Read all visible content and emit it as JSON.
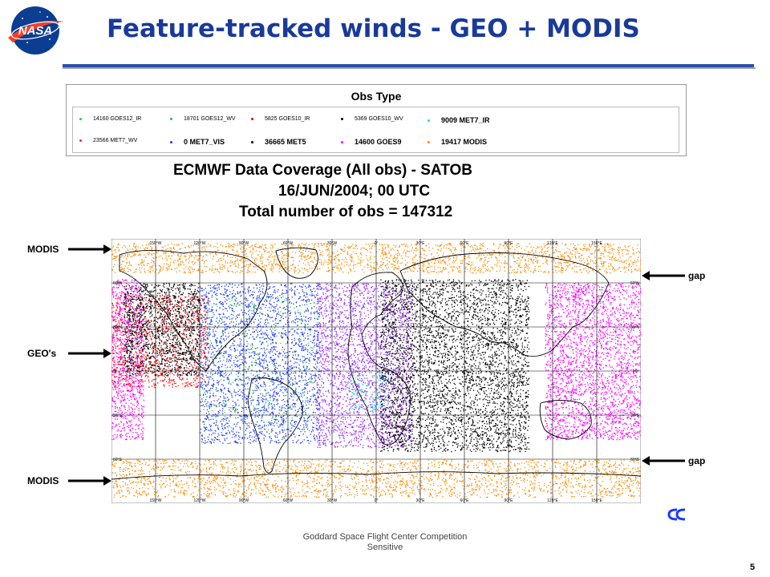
{
  "header": {
    "logo_text": "NASA",
    "title": "Feature-tracked winds - GEO + MODIS"
  },
  "legend": {
    "title": "Obs Type",
    "entries": [
      {
        "label": "14160 GOES12_IR",
        "color": "#2ecc40",
        "bold": false
      },
      {
        "label": "18701 GOES12_WV",
        "color": "#3aa0a0",
        "bold": false
      },
      {
        "label": "5825 GOES10_IR",
        "color": "#ff0000",
        "bold": false
      },
      {
        "label": "5369 GOES10_WV",
        "color": "#000000",
        "bold": false
      },
      {
        "label": "9009 MET7_IR",
        "color": "#00e0e0",
        "bold": true
      },
      {
        "label": "23566 MET7_WV",
        "color": "#e03050",
        "bold": false
      },
      {
        "label": "0 MET7_VIS",
        "color": "#1a3aff",
        "bold": true
      },
      {
        "label": "36665 MET5",
        "color": "#000000",
        "bold": true
      },
      {
        "label": "14600 GOES9",
        "color": "#ff00ff",
        "bold": true
      },
      {
        "label": "19417 MODIS",
        "color": "#ff8c00",
        "bold": true
      }
    ]
  },
  "coverage": {
    "line1": "ECMWF Data Coverage (All obs)    - SATOB",
    "line2": "16/JUN/2004; 00 UTC",
    "line3": "Total number of obs = 147312"
  },
  "map": {
    "lon_labels": [
      "150°W",
      "120°W",
      "90°W",
      "60°W",
      "30°W",
      "0°",
      "30°E",
      "60°E",
      "90°E",
      "120°E",
      "150°E"
    ],
    "lat_labels": [
      "60°N",
      "30°N",
      "0°",
      "30°S",
      "60°S"
    ],
    "colors": {
      "modis": "#ff8c00",
      "goes9": "#ff00ff",
      "goes10_ir": "#ff0000",
      "goes12_ir": "#2ecc40",
      "goes12_wv": "#1a3aff",
      "met7": "#9b30ff",
      "met5": "#000000",
      "met7_ir": "#00e0e0"
    }
  },
  "annotations": {
    "modis_top": "MODIS",
    "geos": "GEO's",
    "modis_bottom": "MODIS",
    "gap_top": "gap",
    "gap_bottom": "gap"
  },
  "footer": {
    "line1": "Goddard Space Flight Center Competition",
    "line2": "Sensitive",
    "page_number": "5"
  }
}
